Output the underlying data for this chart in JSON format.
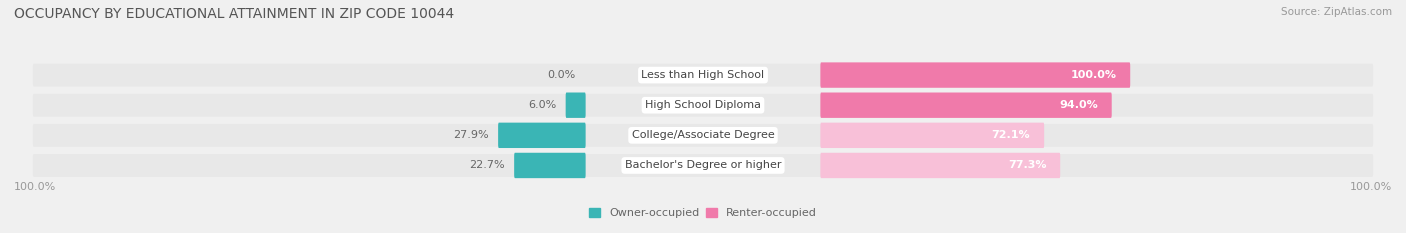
{
  "title": "OCCUPANCY BY EDUCATIONAL ATTAINMENT IN ZIP CODE 10044",
  "source": "Source: ZipAtlas.com",
  "categories": [
    "Less than High School",
    "High School Diploma",
    "College/Associate Degree",
    "Bachelor's Degree or higher"
  ],
  "owner_pct": [
    0.0,
    6.0,
    27.9,
    22.7
  ],
  "renter_pct": [
    100.0,
    94.0,
    72.1,
    77.3
  ],
  "owner_color": "#3ab5b5",
  "renter_color": "#f07aaa",
  "renter_color_light": "#f8c0d8",
  "bg_color": "#f0f0f0",
  "bar_bg_color": "#e2e2e2",
  "row_bg_color": "#e8e8e8",
  "title_fontsize": 10,
  "source_fontsize": 7.5,
  "label_fontsize": 8,
  "bar_label_fontsize": 8,
  "axis_label_fontsize": 8,
  "left_label": "100.0%",
  "right_label": "100.0%",
  "legend_owner": "Owner-occupied",
  "legend_renter": "Renter-occupied"
}
